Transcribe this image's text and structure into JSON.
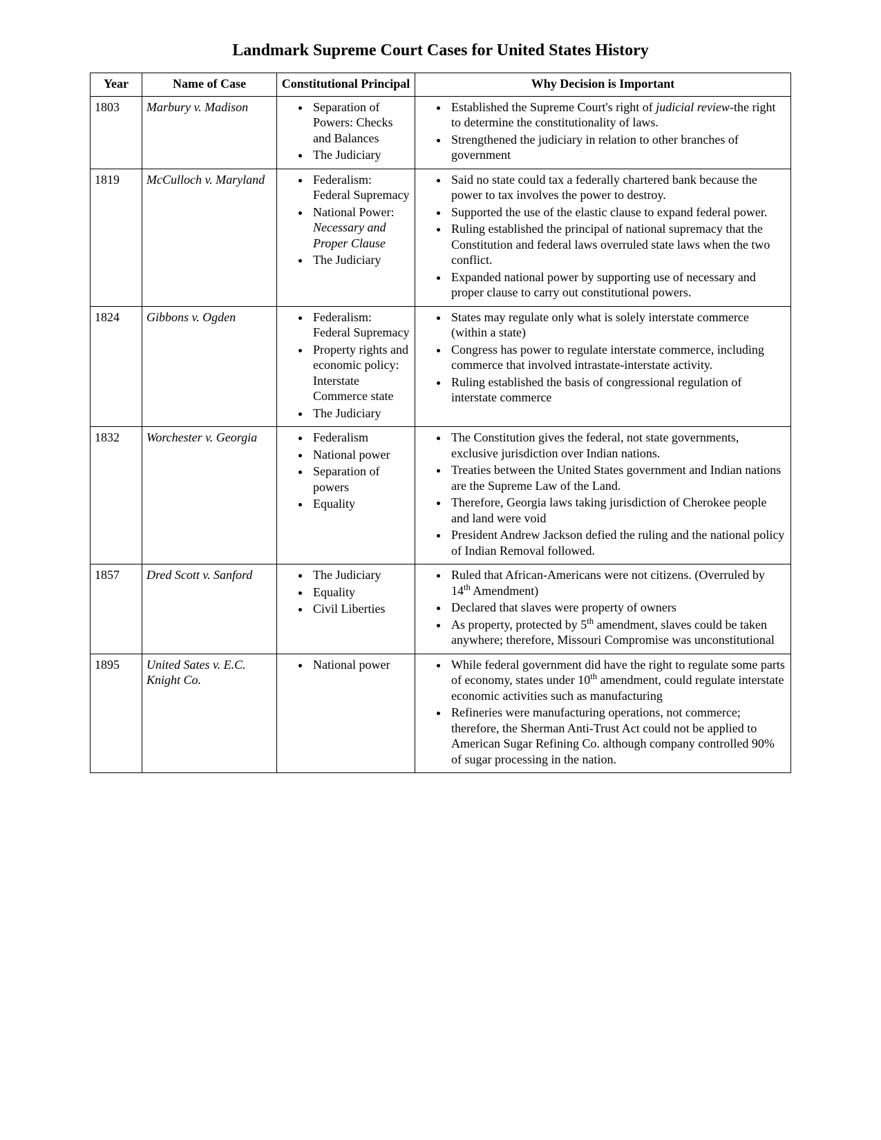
{
  "title": "Landmark Supreme Court Cases for United States History",
  "columns": {
    "year": "Year",
    "name": "Name of Case",
    "principal": "Constitutional Principal",
    "why": "Why Decision is Important"
  },
  "cases": [
    {
      "year": "1803",
      "name": "Marbury v. Madison",
      "principal": [
        {
          "text": "Separation of Powers: Checks and Balances"
        },
        {
          "text": "The Judiciary"
        }
      ],
      "why": [
        {
          "html": "Established the Supreme Court's right of <span class=\"italic\">judicial review</span>-the right to determine the constitutionality of laws."
        },
        {
          "text": "Strengthened the judiciary in relation to other branches of government"
        }
      ]
    },
    {
      "year": "1819",
      "name": "McCulloch v. Maryland",
      "principal": [
        {
          "text": "Federalism: Federal Supremacy"
        },
        {
          "html": "National Power: <span class=\"italic\">Necessary and Proper Clause</span>"
        },
        {
          "text": "The Judiciary"
        }
      ],
      "why": [
        {
          "text": "Said no state could tax a federally chartered bank because the power to tax involves the power to destroy."
        },
        {
          "text": "Supported the use of the elastic clause to expand federal power."
        },
        {
          "text": "Ruling established the principal of national supremacy that the Constitution and federal laws overruled state laws when the two conflict."
        },
        {
          "text": "Expanded national power by supporting use of necessary and proper clause to carry out constitutional powers."
        }
      ]
    },
    {
      "year": "1824",
      "name": "Gibbons v. Ogden",
      "principal": [
        {
          "text": "Federalism: Federal Supremacy"
        },
        {
          "text": "Property rights and economic policy: Interstate Commerce state"
        },
        {
          "text": "The Judiciary"
        }
      ],
      "why": [
        {
          "text": "States may regulate only what is solely interstate commerce (within a state)"
        },
        {
          "text": "Congress has power to regulate interstate commerce, including commerce that involved intrastate-interstate activity."
        },
        {
          "text": "Ruling established the basis of congressional regulation of interstate commerce"
        }
      ]
    },
    {
      "year": "1832",
      "name": "Worchester v. Georgia",
      "principal": [
        {
          "text": "Federalism"
        },
        {
          "text": "National power"
        },
        {
          "text": "Separation of powers"
        },
        {
          "text": "Equality"
        }
      ],
      "why": [
        {
          "text": "The Constitution gives the federal, not state governments, exclusive jurisdiction over Indian nations."
        },
        {
          "text": "Treaties between the United States government and Indian nations are the Supreme Law of the Land."
        },
        {
          "text": "Therefore, Georgia laws taking jurisdiction of Cherokee people and land were void"
        },
        {
          "text": "President Andrew Jackson defied the ruling and the national policy of Indian Removal followed."
        }
      ]
    },
    {
      "year": "1857",
      "name": "Dred Scott v. Sanford",
      "principal": [
        {
          "text": "The Judiciary"
        },
        {
          "text": "Equality"
        },
        {
          "text": "Civil Liberties"
        }
      ],
      "why": [
        {
          "html": "Ruled that African-Americans were not citizens. (Overruled by 14<sup>th</sup> Amendment)"
        },
        {
          "text": "Declared that slaves were property of owners"
        },
        {
          "html": "As property, protected by 5<sup>th</sup> amendment, slaves could be taken anywhere; therefore, Missouri Compromise was unconstitutional"
        }
      ]
    },
    {
      "year": "1895",
      "name": "United Sates v. E.C. Knight Co.",
      "principal": [
        {
          "text": "National power"
        }
      ],
      "why": [
        {
          "html": "While federal government did have the right to regulate some parts of economy, states under 10<sup>th</sup> amendment, could regulate interstate economic activities such as manufacturing"
        },
        {
          "text": "Refineries were manufacturing operations, not commerce; therefore, the Sherman Anti-Trust Act could not be applied to American Sugar Refining Co. although company controlled 90% of sugar processing in the nation."
        }
      ]
    }
  ]
}
